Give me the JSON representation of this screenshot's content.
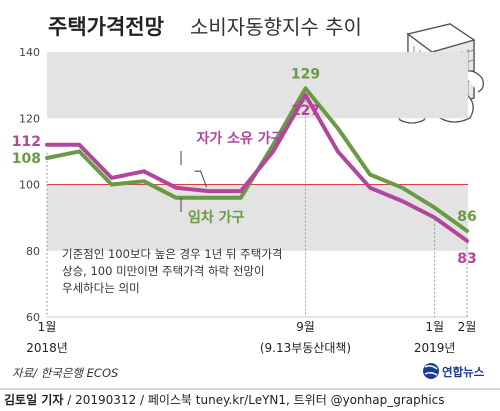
{
  "title": "주택가격전망",
  "subtitle": "소비자동향지수 추이",
  "colors": {
    "owner": "#b0479b",
    "renter": "#6a9a45",
    "band": "#e3e3e3",
    "refline": "#d94040",
    "axis": "#555555"
  },
  "chart_data": {
    "type": "line",
    "ylim": [
      60,
      140
    ],
    "yticks": [
      "60",
      "80",
      "100",
      "120",
      "140"
    ],
    "x": [
      "2018-01",
      "2018-02",
      "2018-03",
      "2018-04",
      "2018-05",
      "2018-06",
      "2018-07",
      "2018-08",
      "2018-09",
      "2018-10",
      "2018-11",
      "2018-12",
      "2019-01",
      "2019-02"
    ],
    "xtick_labels": [
      {
        "index": 0,
        "label": "1월",
        "sublabel": "2018년"
      },
      {
        "index": 8,
        "label": "9월",
        "sublabel": "(9.13부동산대책)"
      },
      {
        "index": 12,
        "label": "1월",
        "sublabel": "2019년"
      },
      {
        "index": 13,
        "label": "2월",
        "sublabel": ""
      }
    ],
    "reference_line": 100,
    "bands": [
      [
        80,
        100
      ],
      [
        120,
        140
      ]
    ],
    "series": [
      {
        "name": "자가 소유 가구",
        "key": "owner",
        "values": [
          112,
          112,
          102,
          104,
          99,
          98,
          98,
          110,
          127,
          110,
          99,
          95,
          90,
          83
        ]
      },
      {
        "name": "임차 가구",
        "key": "renter",
        "values": [
          108,
          110,
          100,
          101,
          96,
          96,
          96,
          112,
          129,
          117,
          103,
          99,
          93,
          86
        ]
      }
    ],
    "data_labels": [
      {
        "series": "owner",
        "index": 0,
        "text": "112"
      },
      {
        "series": "renter",
        "index": 0,
        "text": "108"
      },
      {
        "series": "renter",
        "index": 8,
        "text": "129"
      },
      {
        "series": "owner",
        "index": 8,
        "text": "127"
      },
      {
        "series": "renter",
        "index": 13,
        "text": "86"
      },
      {
        "series": "owner",
        "index": 13,
        "text": "83"
      }
    ],
    "annotation": [
      "기준점인 100보다 높은 경우 1년 뒤 주택가격",
      "상승, 100 미만이면 주택가격 하락 전망이",
      "우세하다는 의미"
    ]
  },
  "source": "자료/ 한국은행 ECOS",
  "footer": {
    "author": "김토일 기자",
    "rest": " / 20190312 / 페이스북 tuney.kr/LeYN1, 트위터 @yonhap_graphics"
  },
  "logo": {
    "text": "연합뉴스"
  },
  "illustration": {
    "icon": "apartment-building-with-money-bags-icon"
  }
}
